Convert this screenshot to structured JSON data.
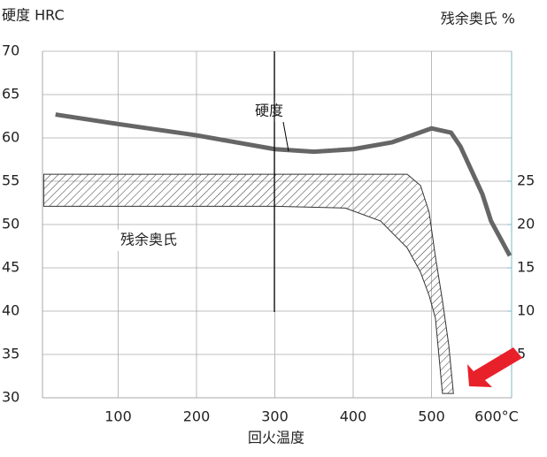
{
  "chart_data": {
    "type": "line",
    "ylabel": "硬度 HRC",
    "y2label": "残余奥氏 %",
    "xlabel": "回火温度",
    "xlim": [
      0,
      600
    ],
    "xticks": [
      100,
      200,
      300,
      400,
      500,
      {
        "value": 600,
        "label": "600°C"
      }
    ],
    "ylim": [
      30,
      70
    ],
    "yticks": [
      30,
      35,
      40,
      45,
      50,
      55,
      60,
      65,
      70
    ],
    "y2lim": [
      0,
      40
    ],
    "y2ticks": [
      5,
      10,
      15,
      20,
      25
    ],
    "grid": true,
    "series": [
      {
        "name": "硬度",
        "color": "#666666",
        "x": [
          20,
          100,
          200,
          300,
          350,
          400,
          450,
          469,
          500,
          525,
          537,
          565,
          576,
          600
        ],
        "values": [
          62.7,
          61.6,
          60.3,
          58.7,
          58.4,
          58.7,
          59.5,
          60.1,
          61.1,
          60.6,
          59,
          53.5,
          50.4,
          46.4
        ]
      },
      {
        "name": "残余奥氏",
        "type": "band",
        "axis": "y2",
        "color": "#333333",
        "x_upper": [
          5,
          100,
          200,
          300,
          400,
          469,
          486,
          497,
          505,
          514,
          522,
          528
        ],
        "upper": [
          25.8,
          25.8,
          25.8,
          25.8,
          25.8,
          25.8,
          24.5,
          21.4,
          16.3,
          11.2,
          6.1,
          0.5
        ],
        "x_lower": [
          5,
          100,
          200,
          300,
          390,
          435,
          469,
          486,
          497,
          505,
          514
        ],
        "lower": [
          22.1,
          22.1,
          22.1,
          22.1,
          21.9,
          20.4,
          17.3,
          14.5,
          11.8,
          9.2,
          0.5
        ]
      }
    ]
  }
}
